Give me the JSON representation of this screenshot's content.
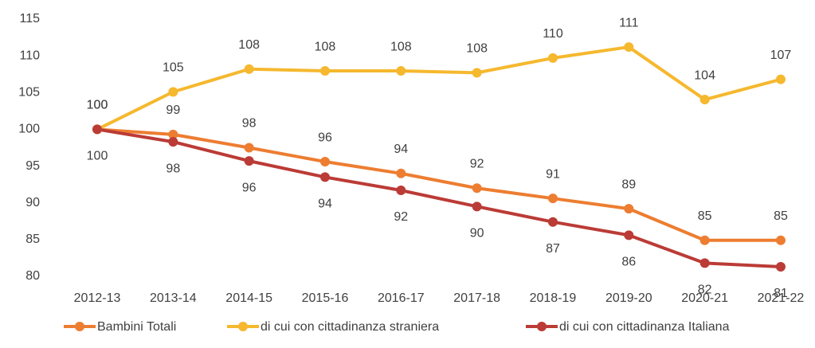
{
  "chart_data": {
    "type": "line",
    "categories": [
      "2012-13",
      "2013-14",
      "2014-15",
      "2015-16",
      "2016-17",
      "2017-18",
      "2018-19",
      "2019-20",
      "2020-21",
      "2021-22"
    ],
    "series": [
      {
        "name": "Bambini Totali",
        "color": "#ed7d31",
        "label_position": "above",
        "values": [
          100,
          99.3,
          97.5,
          95.6,
          94,
          92,
          90.6,
          89.2,
          84.9,
          84.9
        ],
        "value_labels": [
          "100",
          "99",
          "98",
          "96",
          "94",
          "92",
          "91",
          "89",
          "85",
          "85"
        ]
      },
      {
        "name": "di cui con cittadinanza straniera",
        "color": "#f5b82e",
        "label_position": "above",
        "values": [
          100,
          105.1,
          108.2,
          107.95,
          107.95,
          107.7,
          109.7,
          111.2,
          104.05,
          106.8
        ],
        "value_labels": [
          "100",
          "105",
          "108",
          "108",
          "108",
          "108",
          "110",
          "111",
          "104",
          "107"
        ]
      },
      {
        "name": "di cui con cittadinanza Italiana",
        "color": "#bb3b36",
        "label_position": "below",
        "values": [
          100,
          98.3,
          95.7,
          93.5,
          91.7,
          89.5,
          87.4,
          85.6,
          81.8,
          81.3
        ],
        "value_labels": [
          "100",
          "98",
          "96",
          "94",
          "92",
          "90",
          "87",
          "86",
          "82",
          "81"
        ]
      }
    ],
    "ylim": [
      80,
      115
    ],
    "yticks": [
      80,
      85,
      90,
      95,
      100,
      105,
      110,
      115
    ],
    "grid": false,
    "legend_position": "bottom"
  }
}
